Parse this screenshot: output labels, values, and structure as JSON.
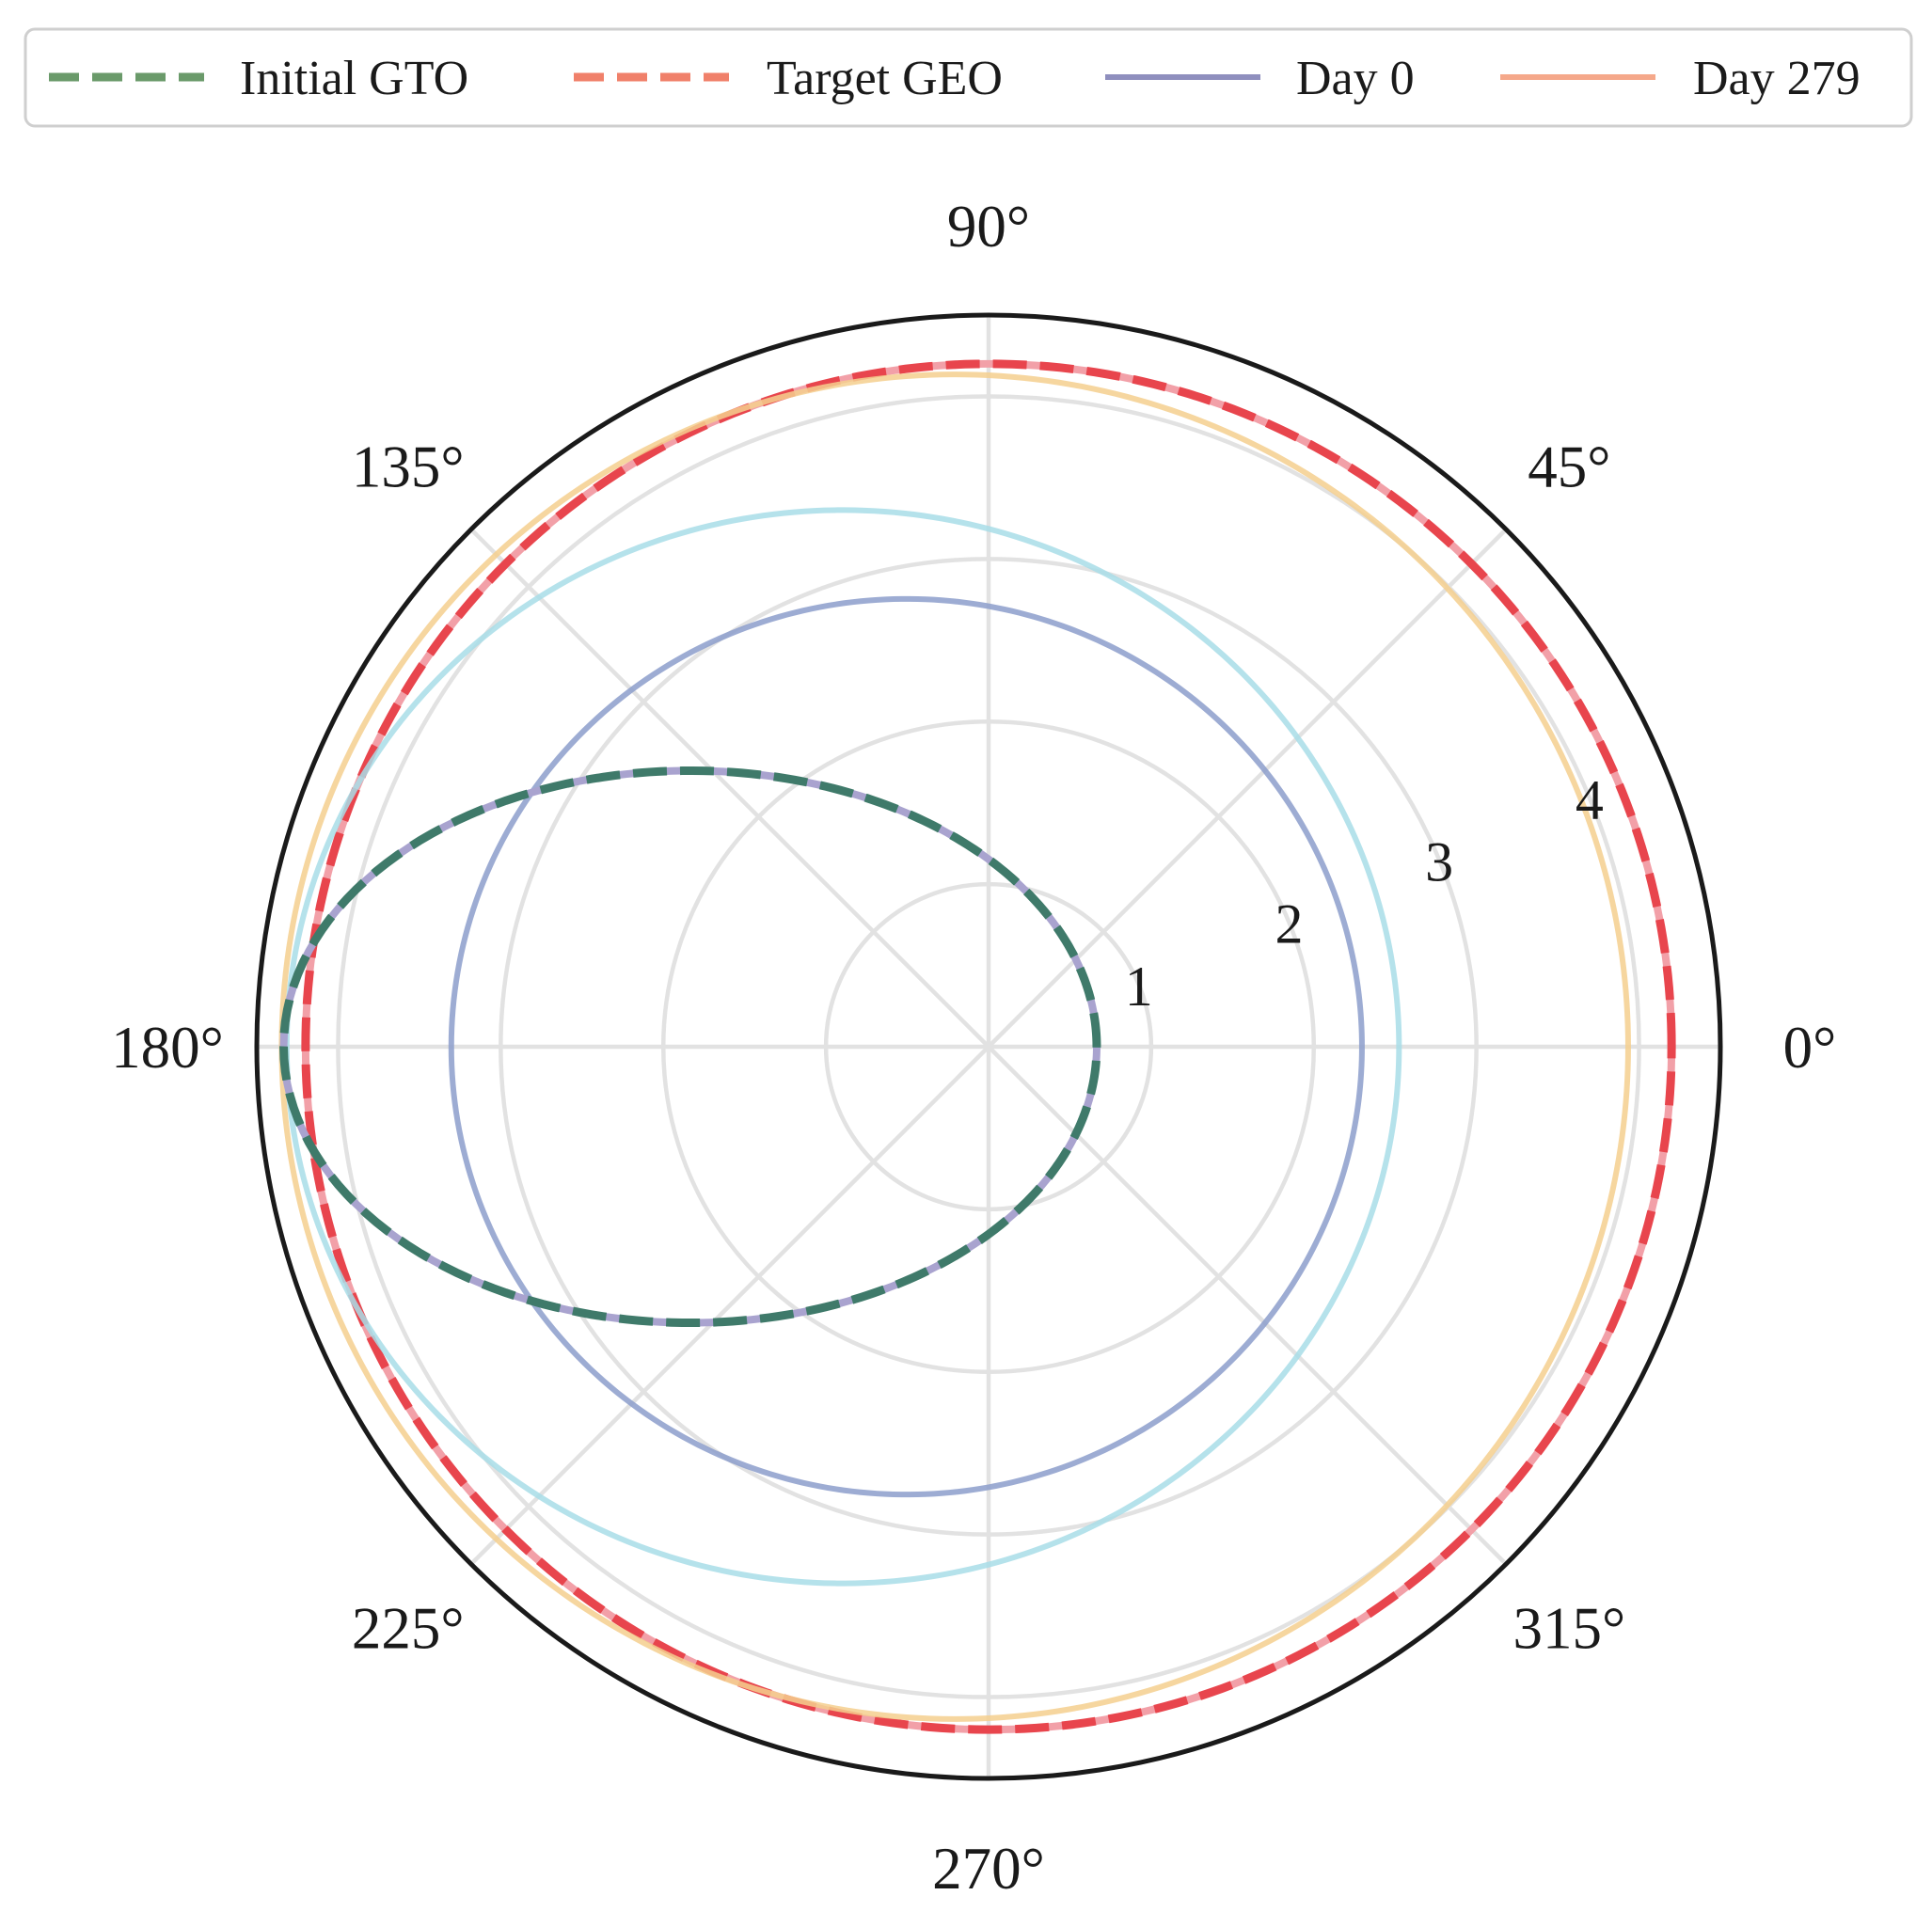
{
  "chart_data": {
    "type": "line",
    "projection": "polar",
    "title": "",
    "angle_ticks_deg": [
      0,
      45,
      90,
      135,
      180,
      225,
      270,
      315
    ],
    "angle_tick_labels": [
      "0°",
      "45°",
      "90°",
      "135°",
      "180°",
      "225°",
      "270°",
      "315°"
    ],
    "radial_ticks": [
      1,
      2,
      3,
      4
    ],
    "radial_tick_labels": [
      "1",
      "2",
      "3",
      "4"
    ],
    "rlim": [
      0,
      4.5
    ],
    "grid": true,
    "legend": {
      "placement": "top",
      "entries": [
        {
          "label": "Initial GTO",
          "color": "#6a9a6a",
          "style": "dashed"
        },
        {
          "label": "Target GEO",
          "color": "#f0806a",
          "style": "dashed"
        },
        {
          "label": "Day 0",
          "color": "#8f8fbe",
          "style": "solid"
        },
        {
          "label": "Day 279",
          "color": "#f5a88a",
          "style": "solid"
        }
      ]
    },
    "series": [
      {
        "name": "Target GEO",
        "kind": "ellipse",
        "semi_major_axis": 4.2,
        "eccentricity": 0.0,
        "color": "#e8454d",
        "style": "dashed",
        "under_color": "#f2a0a8"
      },
      {
        "name": "",
        "kind": "ellipse",
        "semi_major_axis": 4.14,
        "eccentricity": 0.05,
        "color": "#f5cf8e",
        "style": "solid"
      },
      {
        "name": "",
        "kind": "ellipse",
        "semi_major_axis": 3.42,
        "eccentricity": 0.262,
        "color": "#a8dde8",
        "style": "solid"
      },
      {
        "name": "",
        "kind": "ellipse",
        "semi_major_axis": 2.8,
        "eccentricity": 0.18,
        "color": "#8c9ecb",
        "style": "solid"
      },
      {
        "name": "Initial GTO",
        "kind": "ellipse",
        "semi_major_axis": 2.5,
        "eccentricity": 0.734,
        "color": "#3f7a6a",
        "style": "dashed",
        "under_color": "#a9a3cf"
      }
    ]
  }
}
